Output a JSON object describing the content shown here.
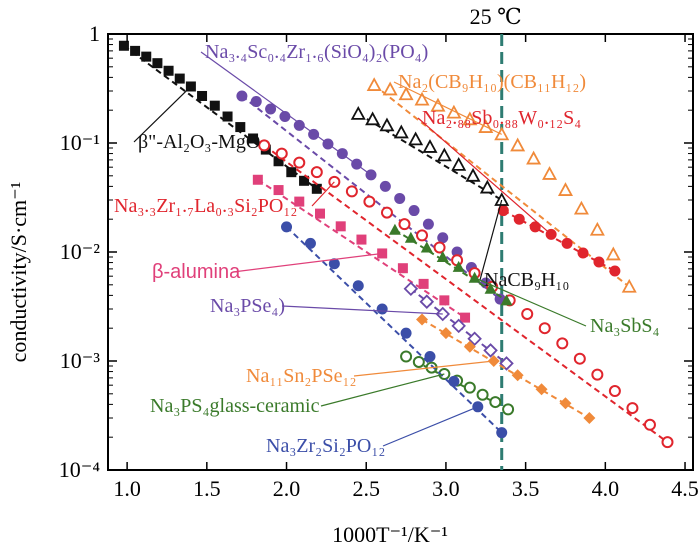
{
  "chart_data": {
    "type": "scatter",
    "title": "",
    "xlabel": "1000T⁻¹/K⁻¹",
    "ylabel": "conductivity/S·cm⁻¹",
    "xlim": [
      0.88,
      4.55
    ],
    "ylim": [
      0.0001,
      1
    ],
    "y_scale": "log",
    "x_ticks": [
      "1.0",
      "1.5",
      "2.0",
      "2.5",
      "3.0",
      "3.5",
      "4.0",
      "4.5"
    ],
    "y_ticks": [
      "1",
      "10⁻¹",
      "10⁻²",
      "10⁻³",
      "10⁻⁴"
    ],
    "grid": false,
    "reference_line": {
      "x": 3.35,
      "label": "25 ℃"
    },
    "series": [
      {
        "key": "bal",
        "name": "β\"-Al₂O₃-MgO",
        "color": "#111111",
        "marker": "square",
        "x": [
          0.98,
          1.05,
          1.12,
          1.19,
          1.26,
          1.33,
          1.4,
          1.47,
          1.55,
          1.63,
          1.71,
          1.79,
          1.87,
          1.95,
          2.03,
          2.11,
          2.19
        ],
        "y": [
          0.78,
          0.7,
          0.62,
          0.54,
          0.46,
          0.39,
          0.33,
          0.27,
          0.22,
          0.175,
          0.14,
          0.11,
          0.087,
          0.068,
          0.054,
          0.045,
          0.038
        ]
      },
      {
        "key": "nasc",
        "name": "Na₃.₄Sc₀.₄Zr₁.₆(SiO₄)₂(PO₄)",
        "color": "#6a4aa8",
        "marker": "circle",
        "x": [
          1.72,
          1.81,
          1.9,
          1.99,
          2.08,
          2.17,
          2.26,
          2.35,
          2.44,
          2.53,
          2.62,
          2.71,
          2.8,
          2.89,
          2.98,
          3.07,
          3.16,
          3.25,
          3.34
        ],
        "y": [
          0.27,
          0.24,
          0.205,
          0.175,
          0.145,
          0.12,
          0.098,
          0.08,
          0.064,
          0.051,
          0.04,
          0.031,
          0.024,
          0.018,
          0.0135,
          0.01,
          0.0072,
          0.0052,
          0.0037
        ]
      },
      {
        "key": "cb",
        "name": "Na₂(CB₉H₁₀)(CB₁₁H₁₂)",
        "color": "#f08a3a",
        "marker": "triangle-open",
        "x": [
          2.55,
          2.65,
          2.75,
          2.85,
          2.95,
          3.05,
          3.15,
          3.25,
          3.35,
          3.45,
          3.55,
          3.65,
          3.75,
          3.85,
          3.95,
          4.05,
          4.15
        ],
        "y": [
          0.34,
          0.31,
          0.28,
          0.25,
          0.22,
          0.19,
          0.165,
          0.14,
          0.12,
          0.095,
          0.072,
          0.052,
          0.037,
          0.025,
          0.016,
          0.0095,
          0.0048
        ]
      },
      {
        "key": "nasbw",
        "name": "Na₂.₈₈Sb₀.₈₈W₀.₁₂S₄",
        "color": "#e0252d",
        "marker": "circle",
        "x": [
          3.36,
          3.46,
          3.56,
          3.66,
          3.76,
          3.86,
          3.96,
          4.06
        ],
        "y": [
          0.024,
          0.02,
          0.017,
          0.0145,
          0.012,
          0.0098,
          0.0081,
          0.0067
        ]
      },
      {
        "key": "nacb9",
        "name": "NaCB₉H₁₀",
        "color": "#111111",
        "marker": "triangle-open",
        "x": [
          2.45,
          2.54,
          2.63,
          2.72,
          2.81,
          2.9,
          2.99,
          3.08,
          3.17,
          3.26,
          3.35
        ],
        "y": [
          0.185,
          0.165,
          0.145,
          0.125,
          0.108,
          0.092,
          0.077,
          0.063,
          0.05,
          0.039,
          0.03
        ]
      },
      {
        "key": "nzlsp",
        "name": "Na₃.₃Zr₁.₇La₀.₃Si₂PO₁₂",
        "color": "#e0252d",
        "marker": "circle-open",
        "x": [
          1.86,
          1.97,
          2.08,
          2.19,
          2.3,
          2.41,
          2.52,
          2.63,
          2.74,
          2.85,
          2.96,
          3.07,
          3.18,
          3.29,
          3.4,
          3.51,
          3.62,
          3.73,
          3.84,
          3.95,
          4.06,
          4.17,
          4.28,
          4.39
        ],
        "y": [
          0.095,
          0.08,
          0.066,
          0.054,
          0.044,
          0.036,
          0.029,
          0.023,
          0.018,
          0.0142,
          0.011,
          0.0084,
          0.0064,
          0.0048,
          0.0036,
          0.0027,
          0.002,
          0.00145,
          0.00105,
          0.00075,
          0.00053,
          0.00037,
          0.00026,
          0.00018
        ]
      },
      {
        "key": "balumina",
        "name": "β-alumina",
        "color": "#e0407a",
        "marker": "square",
        "x": [
          1.82,
          1.95,
          2.08,
          2.21,
          2.34,
          2.47,
          2.6,
          2.73,
          2.86,
          2.99,
          3.12
        ],
        "y": [
          0.046,
          0.037,
          0.029,
          0.0225,
          0.0172,
          0.013,
          0.0097,
          0.0071,
          0.0051,
          0.0036,
          0.0025
        ]
      },
      {
        "key": "nasbs",
        "name": "Na₃SbS₄",
        "color": "#3a7a2a",
        "marker": "triangle",
        "x": [
          2.68,
          2.78,
          2.88,
          2.98,
          3.08,
          3.18,
          3.28,
          3.38
        ],
        "y": [
          0.016,
          0.0135,
          0.011,
          0.009,
          0.0073,
          0.0058,
          0.0046,
          0.0036
        ]
      },
      {
        "key": "napse",
        "name": "Na₃PSe₄",
        "color": "#6a4aa8",
        "marker": "diamond-open",
        "x": [
          2.78,
          2.88,
          2.98,
          3.08,
          3.18,
          3.28,
          3.38
        ],
        "y": [
          0.0046,
          0.0035,
          0.0027,
          0.0021,
          0.0016,
          0.00125,
          0.00095
        ]
      },
      {
        "key": "nasnpse",
        "name": "Na₁₁Sn₂PSe₁₂",
        "color": "#f08a3a",
        "marker": "diamond",
        "x": [
          2.85,
          3.0,
          3.15,
          3.3,
          3.45,
          3.6,
          3.75,
          3.9
        ],
        "y": [
          0.0024,
          0.0018,
          0.00135,
          0.001,
          0.00074,
          0.00055,
          0.00041,
          0.0003
        ]
      },
      {
        "key": "naps",
        "name": "Na₃PS₄glass-ceramic",
        "color": "#3a7a2a",
        "marker": "circle-open",
        "x": [
          2.75,
          2.83,
          2.91,
          2.99,
          3.07,
          3.15,
          3.23,
          3.31,
          3.39
        ],
        "y": [
          0.0011,
          0.00098,
          0.00087,
          0.00076,
          0.00066,
          0.00057,
          0.00049,
          0.00042,
          0.00036
        ]
      },
      {
        "key": "nzsp",
        "name": "Na₃Zr₂Si₂PO₁₂",
        "color": "#3b4ea8",
        "marker": "circle",
        "x": [
          2.0,
          2.15,
          2.3,
          2.45,
          2.6,
          2.75,
          2.9,
          3.05,
          3.2,
          3.35
        ],
        "y": [
          0.017,
          0.012,
          0.0078,
          0.0049,
          0.003,
          0.0018,
          0.0011,
          0.00065,
          0.00038,
          0.00022
        ]
      }
    ],
    "annotations": [
      {
        "key": "nasc",
        "text": "Na₃.₄Sc₀.₄Zr₁.₆(SiO₄)₂(PO₄)",
        "color": "#6a4aa8"
      },
      {
        "key": "cb",
        "text": "Na₂(CB₉H₁₀)(CB₁₁H₁₂)",
        "color": "#f08a3a"
      },
      {
        "key": "nasbw",
        "text": "Na₂.₈₈Sb₀.₈₈W₀.₁₂S₄",
        "color": "#e0252d"
      },
      {
        "key": "bal",
        "text": "β\"-Al₂O₃-MgO",
        "color": "#111111"
      },
      {
        "key": "nzlsp",
        "text": "Na₃.₃Zr₁.₇La₀.₃Si₂PO₁₂",
        "color": "#e0252d"
      },
      {
        "key": "balumina",
        "text": "β-alumina",
        "color": "#e0407a"
      },
      {
        "key": "nacb9",
        "text": "NaCB₉H₁₀",
        "color": "#111111"
      },
      {
        "key": "napse",
        "text": "Na₃PSe₄)",
        "color": "#6a4aa8"
      },
      {
        "key": "nasbs",
        "text": "Na₃SbS₄",
        "color": "#3a7a2a"
      },
      {
        "key": "nasnpse",
        "text": "Na₁₁Sn₂PSe₁₂",
        "color": "#f08a3a"
      },
      {
        "key": "naps",
        "text": "Na₃PS₄glass-ceramic",
        "color": "#3a7a2a"
      },
      {
        "key": "nzsp",
        "text": "Na₃Zr₂Si₂PO₁₂",
        "color": "#3b4ea8"
      }
    ]
  }
}
